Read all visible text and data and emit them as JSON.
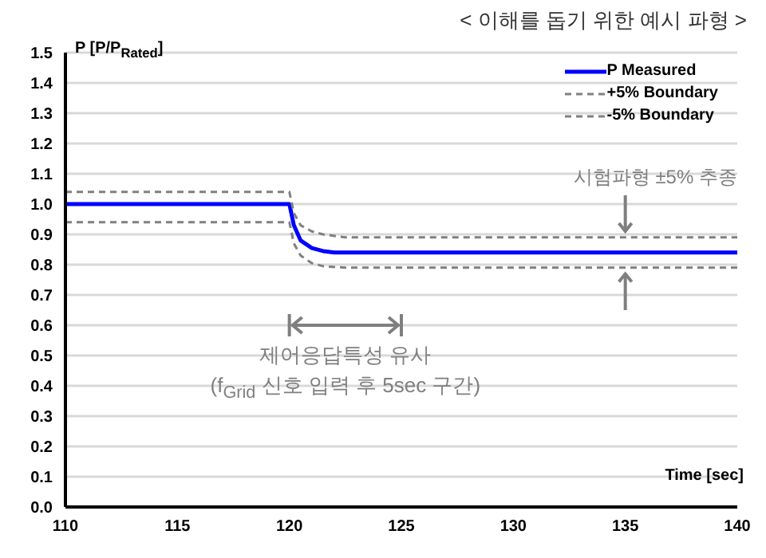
{
  "chart_data": {
    "type": "line",
    "title": "< 이해를 돕기 위한 예시 파형 >",
    "ylabel": "P [P/P$_{Rated}$]",
    "xlabel": "Time [sec]",
    "annotations": [
      "시험파형 ±5% 추종",
      "제어응답특성 유사",
      "(f$_{Grid}$ 신호 입력 후 5sec 구간)"
    ],
    "x": [
      110,
      120,
      120.2,
      120.5,
      121,
      121.5,
      122,
      140
    ],
    "series": [
      {
        "name": "P Measured",
        "color": "#0000ff",
        "line_style": "solid",
        "values": [
          1.0,
          1.0,
          0.93,
          0.88,
          0.855,
          0.845,
          0.84,
          0.84
        ]
      },
      {
        "name": "+5% Boundary",
        "color": "#808080",
        "line_style": "dashed",
        "x": [
          110,
          120,
          120.2,
          120.5,
          121,
          121.5,
          122.5,
          140
        ],
        "values": [
          1.04,
          1.04,
          0.97,
          0.93,
          0.91,
          0.9,
          0.89,
          0.89
        ]
      },
      {
        "name": "-5% Boundary",
        "color": "#808080",
        "line_style": "dashed",
        "x": [
          110,
          120,
          120.2,
          120.5,
          121,
          121.5,
          122.5,
          140
        ],
        "values": [
          0.94,
          0.94,
          0.87,
          0.83,
          0.805,
          0.795,
          0.79,
          0.79
        ]
      }
    ],
    "xlim": [
      110,
      140
    ],
    "xticks": [
      110,
      115,
      120,
      125,
      130,
      135,
      140
    ],
    "ylim": [
      0,
      1.5
    ],
    "yticks": [
      {
        "value": 0,
        "label": "0.0"
      },
      0.1,
      0.2,
      0.3,
      0.4,
      0.5,
      0.6,
      0.7,
      0.8,
      0.9,
      {
        "value": 1,
        "label": "1.0"
      },
      1.1,
      1.2,
      1.3,
      1.4,
      1.5
    ],
    "grid": "y",
    "legend": "top right",
    "marker": "none"
  }
}
